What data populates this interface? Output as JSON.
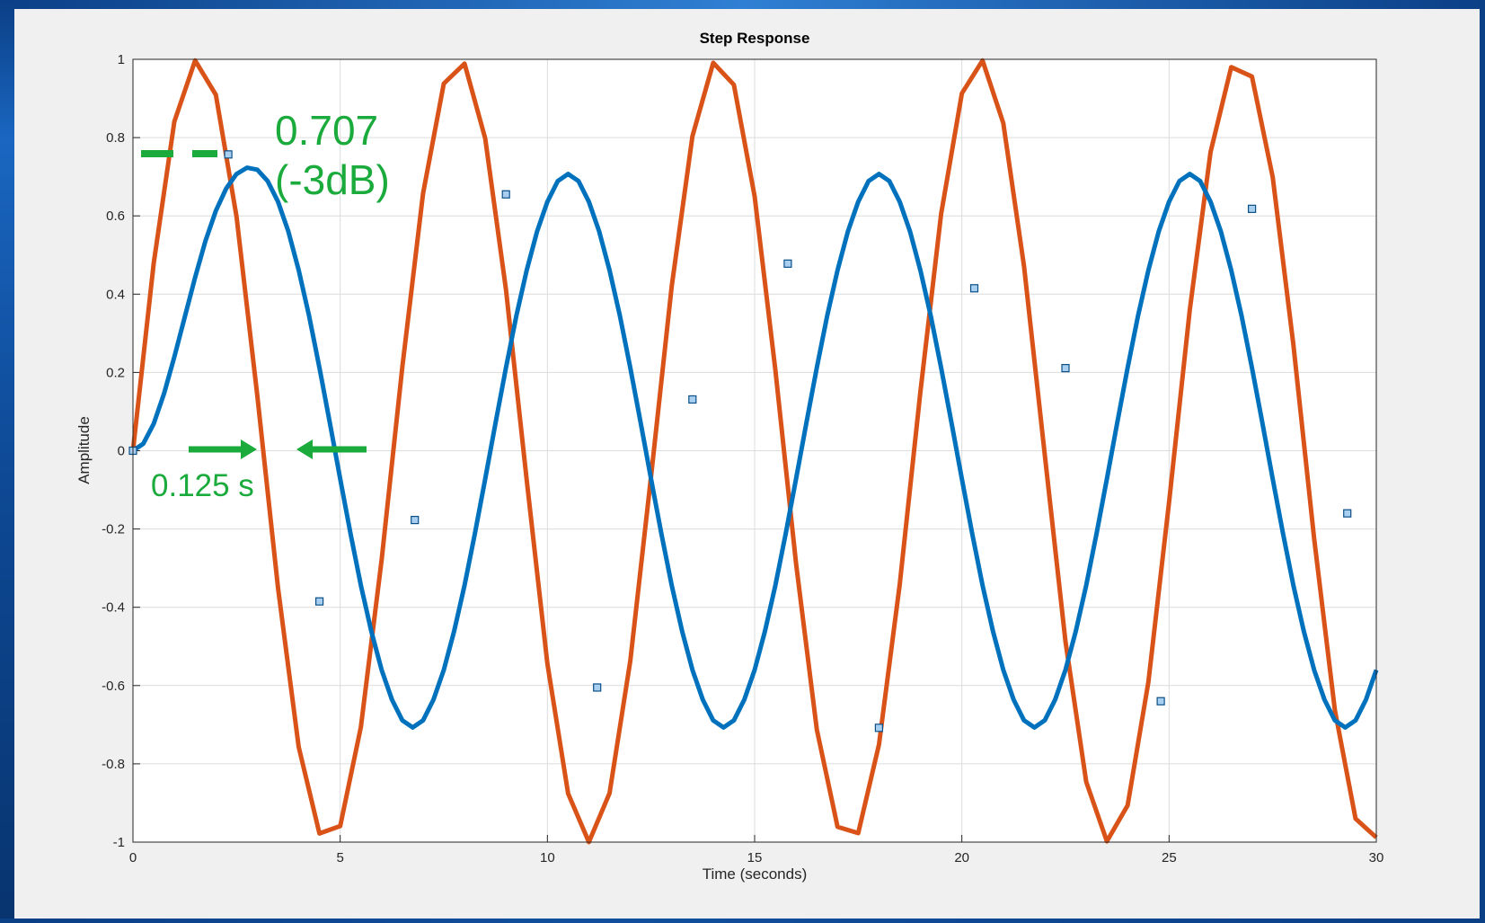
{
  "chart_data": {
    "type": "line",
    "title": "Step Response",
    "xlabel": "Time (seconds)",
    "ylabel": "Amplitude",
    "xlim": [
      0,
      30
    ],
    "ylim": [
      -1,
      1
    ],
    "xticks": [
      0,
      5,
      10,
      15,
      20,
      25,
      30
    ],
    "xtick_labels": [
      "0",
      "5",
      "10",
      "15",
      "20",
      "25",
      "30"
    ],
    "yticks": [
      -1,
      -0.8,
      -0.6,
      -0.4,
      -0.2,
      0,
      0.2,
      0.4,
      0.6,
      0.8,
      1
    ],
    "ytick_labels": [
      "-1",
      "-0.8",
      "-0.6",
      "-0.4",
      "-0.2",
      "0",
      "0.2",
      "0.4",
      "0.6",
      "0.8",
      "1"
    ],
    "grid": true,
    "series": [
      {
        "color": "#d95319",
        "x": [
          0,
          0.5,
          1,
          1.5,
          2,
          2.5,
          3,
          3.5,
          4,
          4.5,
          5,
          5.5,
          6,
          6.5,
          7,
          7.5,
          8,
          8.5,
          9,
          9.5,
          10,
          10.5,
          11,
          11.5,
          12,
          12.5,
          13,
          13.5,
          14,
          14.5,
          15,
          15.5,
          16,
          16.5,
          17,
          17.5,
          18,
          18.5,
          19,
          19.5,
          20,
          20.5,
          21,
          21.5,
          22,
          22.5,
          23,
          23.5,
          24,
          24.5,
          25,
          25.5,
          26,
          26.5,
          27,
          27.5,
          28,
          28.5,
          29,
          29.5,
          30
        ],
        "y": [
          0,
          0.479,
          0.841,
          0.997,
          0.909,
          0.598,
          0.141,
          -0.351,
          -0.757,
          -0.978,
          -0.959,
          -0.706,
          -0.279,
          0.215,
          0.657,
          0.938,
          0.989,
          0.798,
          0.412,
          -0.075,
          -0.544,
          -0.876,
          -1.0,
          -0.875,
          -0.537,
          -0.066,
          0.42,
          0.804,
          0.991,
          0.935,
          0.65,
          0.206,
          -0.288,
          -0.712,
          -0.961,
          -0.977,
          -0.751,
          -0.342,
          0.15,
          0.605,
          0.913,
          0.997,
          0.837,
          0.471,
          -0.009,
          -0.487,
          -0.846,
          -0.998,
          -0.906,
          -0.591,
          -0.132,
          0.36,
          0.763,
          0.98,
          0.956,
          0.699,
          0.271,
          -0.224,
          -0.663,
          -0.94,
          -0.988
        ]
      },
      {
        "color": "#0072bd",
        "x": [
          0,
          0.25,
          0.5,
          0.75,
          1,
          1.25,
          1.5,
          1.75,
          2,
          2.25,
          2.5,
          2.75,
          3,
          3.25,
          3.5,
          3.75,
          4,
          4.25,
          4.5,
          4.75,
          5,
          5.25,
          5.5,
          5.75,
          6,
          6.25,
          6.5,
          6.75,
          7,
          7.25,
          7.5,
          7.75,
          8,
          8.25,
          8.5,
          8.75,
          9,
          9.25,
          9.5,
          9.75,
          10,
          10.25,
          10.5,
          10.75,
          11,
          11.25,
          11.5,
          11.75,
          12,
          12.25,
          12.5,
          12.75,
          13,
          13.25,
          13.5,
          13.75,
          14,
          14.25,
          14.5,
          14.75,
          15,
          15.25,
          15.5,
          15.75,
          16,
          16.25,
          16.5,
          16.75,
          17,
          17.25,
          17.5,
          17.75,
          18,
          18.25,
          18.5,
          18.75,
          19,
          19.25,
          19.5,
          19.75,
          20,
          20.25,
          20.5,
          20.75,
          21,
          21.25,
          21.5,
          21.75,
          22,
          22.25,
          22.5,
          22.75,
          23,
          23.25,
          23.5,
          23.75,
          24,
          24.25,
          24.5,
          24.75,
          25,
          25.25,
          25.5,
          25.75,
          26,
          26.25,
          26.5,
          26.75,
          27,
          27.25,
          27.5,
          27.75,
          28,
          28.25,
          28.5,
          28.75,
          29,
          29.25,
          29.5,
          29.75,
          30
        ],
        "y": [
          0,
          0.018,
          0.069,
          0.146,
          0.24,
          0.342,
          0.443,
          0.536,
          0.613,
          0.67,
          0.707,
          0.723,
          0.718,
          0.689,
          0.636,
          0.56,
          0.461,
          0.344,
          0.212,
          0.072,
          -0.072,
          -0.212,
          -0.344,
          -0.461,
          -0.56,
          -0.636,
          -0.689,
          -0.707,
          -0.689,
          -0.636,
          -0.56,
          -0.461,
          -0.344,
          -0.212,
          -0.072,
          0.072,
          0.212,
          0.344,
          0.461,
          0.56,
          0.636,
          0.689,
          0.707,
          0.689,
          0.636,
          0.56,
          0.461,
          0.344,
          0.212,
          0.072,
          -0.072,
          -0.212,
          -0.344,
          -0.461,
          -0.56,
          -0.636,
          -0.689,
          -0.707,
          -0.689,
          -0.636,
          -0.56,
          -0.461,
          -0.344,
          -0.212,
          -0.072,
          0.072,
          0.212,
          0.344,
          0.461,
          0.56,
          0.636,
          0.689,
          0.707,
          0.689,
          0.636,
          0.56,
          0.461,
          0.344,
          0.212,
          0.072,
          -0.072,
          -0.212,
          -0.344,
          -0.461,
          -0.56,
          -0.636,
          -0.689,
          -0.707,
          -0.689,
          -0.636,
          -0.56,
          -0.461,
          -0.344,
          -0.212,
          -0.072,
          0.072,
          0.212,
          0.344,
          0.461,
          0.56,
          0.636,
          0.689,
          0.707,
          0.689,
          0.636,
          0.56,
          0.461,
          0.344,
          0.212,
          0.072,
          -0.072,
          -0.212,
          -0.344,
          -0.461,
          -0.56,
          -0.636,
          -0.689,
          -0.707,
          -0.689,
          -0.636,
          -0.56
        ],
        "markers": {
          "x": [
            0,
            2.3,
            4.5,
            6.8,
            9.0,
            11.2,
            13.5,
            15.8,
            18.0,
            20.3,
            22.5,
            24.8,
            27.0,
            29.3
          ],
          "y": [
            0,
            0.757,
            -0.385,
            -0.177,
            0.655,
            -0.605,
            0.131,
            0.478,
            -0.708,
            0.415,
            0.211,
            -0.64,
            0.618,
            -0.16
          ]
        }
      }
    ],
    "annotations": {
      "amplitude_value": "0.707",
      "amplitude_db": "(-3dB)",
      "time_delay": "0.125 s",
      "annotation_color": "#1aab3c"
    }
  }
}
